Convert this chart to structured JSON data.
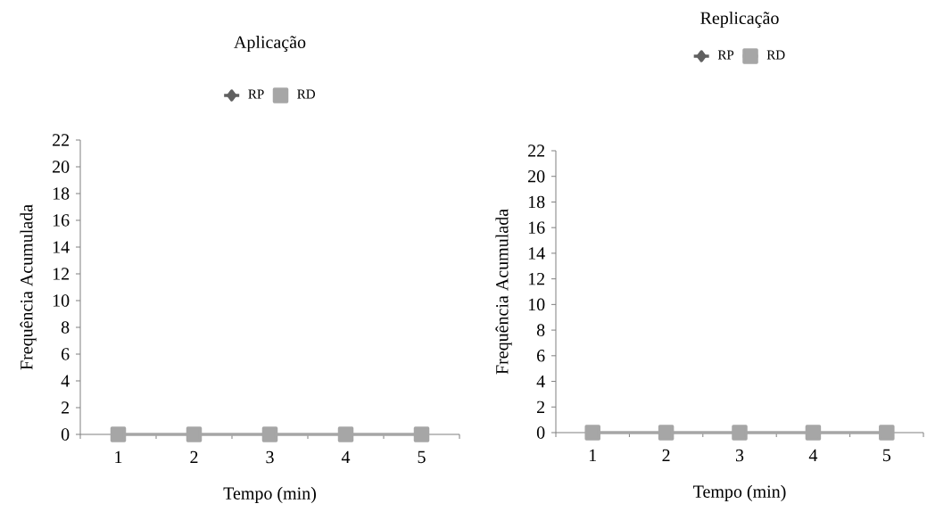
{
  "chart_data": [
    {
      "type": "line",
      "title": "Aplicação",
      "xlabel": "Tempo (min)",
      "ylabel": "Frequência Acumulada",
      "categories": [
        "1",
        "2",
        "3",
        "4",
        "5"
      ],
      "ylim": [
        0,
        22
      ],
      "yticks": [
        0,
        2,
        4,
        6,
        8,
        10,
        12,
        14,
        16,
        18,
        20,
        22
      ],
      "grid": false,
      "legend": "top",
      "line_style": "solid",
      "series": [
        {
          "name": "RP",
          "color": "#606060",
          "marker": "diamond",
          "values": [
            null,
            null,
            null,
            null,
            null
          ]
        },
        {
          "name": "RD",
          "color": "#a6a6a6",
          "marker": "square",
          "values": [
            0,
            0,
            0,
            0,
            0
          ]
        }
      ]
    },
    {
      "type": "line",
      "title": "Replicação",
      "xlabel": "Tempo (min)",
      "ylabel": "Frequência Acumulada",
      "categories": [
        "1",
        "2",
        "3",
        "4",
        "5"
      ],
      "ylim": [
        0,
        22
      ],
      "yticks": [
        0,
        2,
        4,
        6,
        8,
        10,
        12,
        14,
        16,
        18,
        20,
        22
      ],
      "grid": false,
      "legend": "top",
      "line_style": "solid",
      "series": [
        {
          "name": "RP",
          "color": "#606060",
          "marker": "diamond",
          "values": [
            null,
            null,
            null,
            null,
            null
          ]
        },
        {
          "name": "RD",
          "color": "#a6a6a6",
          "marker": "square",
          "values": [
            0,
            0,
            0,
            0,
            0
          ]
        }
      ]
    }
  ]
}
